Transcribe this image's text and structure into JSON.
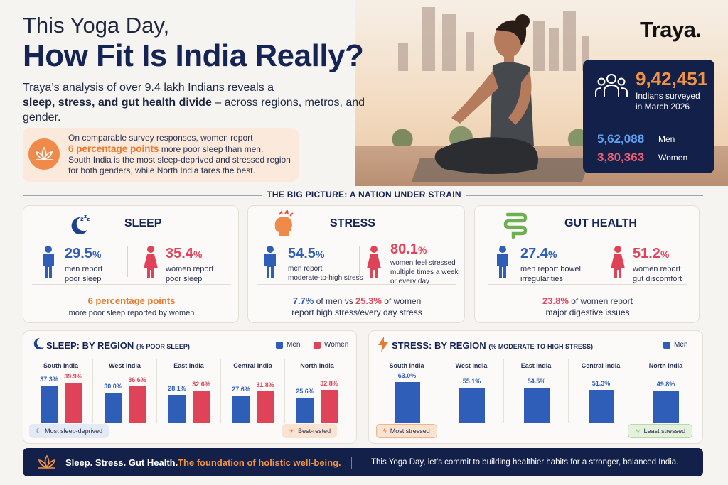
{
  "header": {
    "title_line1": "This Yoga Day,",
    "title_line2": "How Fit Is India Really?",
    "intro_line1": "Traya’s analysis of over 9.4 lakh Indians reveals a",
    "intro_bold": "sleep, stress, and gut health divide",
    "intro_rest": " – across regions, metros, and gender."
  },
  "brand": "Traya.",
  "callout": {
    "icon": "lotus-icon",
    "line1": "On comparable survey responses, women report",
    "highlight": "6 percentage points",
    "line2": " more poor sleep than men.",
    "line3": "South India is the most sleep-deprived and stressed region for both genders, while North India fares the best."
  },
  "survey": {
    "icon": "people-icon",
    "total": "9,42,451",
    "total_label_1": "Indians surveyed",
    "total_label_2": "in March 2026",
    "men_value": "5,62,088",
    "men_label": "Men",
    "women_value": "3,80,363",
    "women_label": "Women"
  },
  "section_title": "THE BIG PICTURE: A NATION UNDER STRAIN",
  "cards": {
    "sleep": {
      "title": "SLEEP",
      "icon": "moon-icon",
      "men_pct": "29.5",
      "men_label_1": "men report",
      "men_label_2": "poor sleep",
      "women_pct": "35.4",
      "women_label_1": "women report",
      "women_label_2": "poor sleep",
      "foot_highlight": "6 percentage points",
      "foot_text": "more poor sleep reported by women"
    },
    "stress": {
      "title": "STRESS",
      "icon": "stressed-head-icon",
      "men_pct": "54.5",
      "men_label_1": "men report",
      "men_label_2": "moderate-to-high stress",
      "women_pct": "80.1",
      "women_label_1": "women feel stressed",
      "women_label_2": "multiple times a week",
      "women_label_3": "or every day",
      "foot_men": "7.7%",
      "foot_mid": " of men vs ",
      "foot_women": "25.3%",
      "foot_end": " of women",
      "foot_line2": "report high stress/every day stress"
    },
    "gut": {
      "title": "GUT HEALTH",
      "icon": "intestine-icon",
      "men_pct": "27.4",
      "men_label_1": "men report bowel",
      "men_label_2": "irregularities",
      "women_pct": "51.2",
      "women_label_1": "women report",
      "women_label_2": "gut discomfort",
      "foot_pct": "23.8%",
      "foot_text": " of women report",
      "foot_line2": "major digestive issues"
    },
    "pct_sign": "%"
  },
  "chart_data": [
    {
      "type": "bar",
      "title": "SLEEP: BY REGION",
      "subtitle": "(% POOR SLEEP)",
      "categories": [
        "South India",
        "West India",
        "East India",
        "Central India",
        "North India"
      ],
      "series": [
        {
          "name": "Men",
          "values": [
            37.3,
            30.0,
            28.1,
            27.6,
            25.6
          ],
          "labels": [
            "37.3%",
            "30.0%",
            "28.1%",
            "27.6%",
            "25.6%"
          ],
          "color": "#2f5eb8"
        },
        {
          "name": "Women",
          "values": [
            39.9,
            36.6,
            32.6,
            31.8,
            32.8
          ],
          "labels": [
            "39.9%",
            "36.6%",
            "32.6%",
            "31.8%",
            "32.8%"
          ],
          "color": "#de4358"
        }
      ],
      "annotations": [
        "Most sleep-deprived",
        "Best-rested"
      ]
    },
    {
      "type": "bar",
      "title": "STRESS: BY REGION",
      "subtitle": "(% MODERATE-TO-HIGH STRESS)",
      "categories": [
        "South India",
        "West India",
        "East India",
        "Central India",
        "North India"
      ],
      "series": [
        {
          "name": "Men",
          "values": [
            63.0,
            55.1,
            54.5,
            51.3,
            49.8
          ],
          "labels": [
            "63.0%",
            "55.1%",
            "54.5%",
            "51.3%",
            "49.8%"
          ],
          "color": "#2f5eb8"
        }
      ],
      "annotations": [
        "Most stressed",
        "Least stressed"
      ]
    }
  ],
  "banner": {
    "icon": "lotus-icon",
    "part1": "Sleep. Stress. Gut Health.",
    "part2": "The foundation of holistic well-being.",
    "part3": "This Yoga Day, let’s commit to building healthier habits for a stronger, balanced India."
  },
  "colors": {
    "navy": "#13214a",
    "orange": "#e8792e",
    "blue": "#2f5eb8",
    "red": "#de4358"
  }
}
